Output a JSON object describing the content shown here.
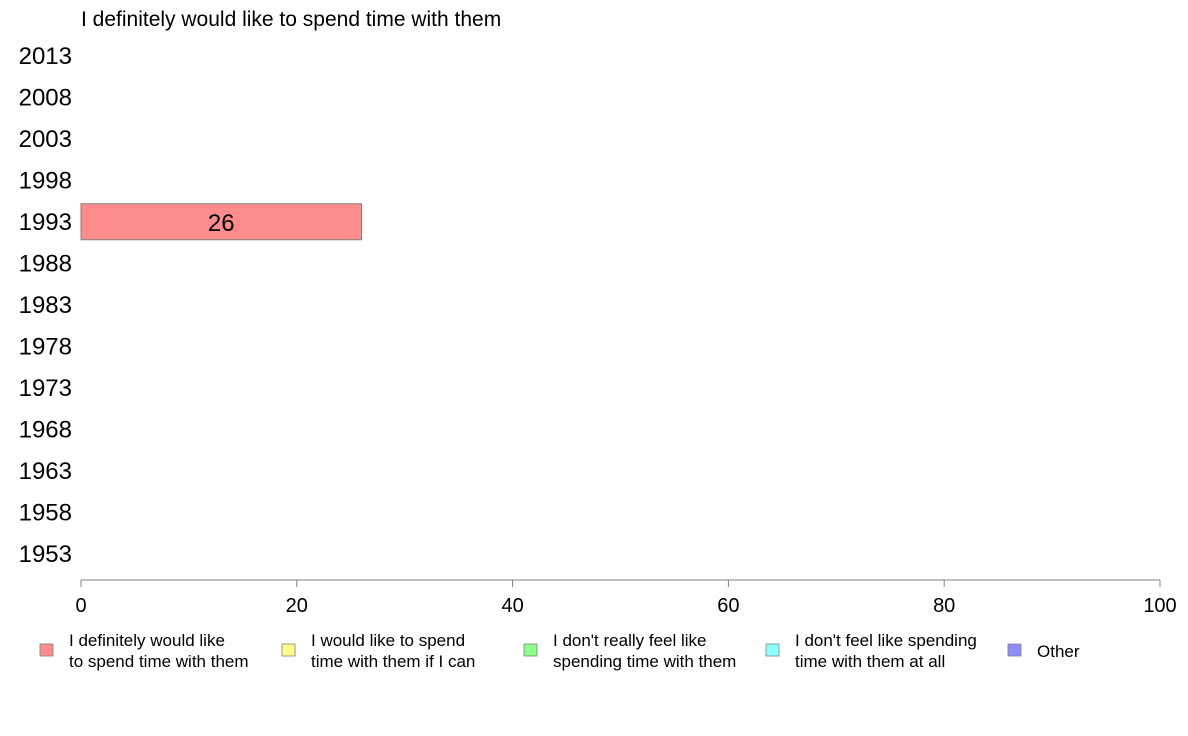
{
  "chart_data": {
    "type": "bar",
    "orientation": "horizontal",
    "title": "I definitely would like to spend time with them",
    "xlabel": "",
    "ylabel": "",
    "xlim": [
      0,
      100
    ],
    "x_ticks": [
      0,
      20,
      40,
      60,
      80,
      100
    ],
    "categories": [
      "2013",
      "2008",
      "2003",
      "1998",
      "1993",
      "1988",
      "1983",
      "1978",
      "1973",
      "1968",
      "1963",
      "1958",
      "1953"
    ],
    "series": [
      {
        "name": "I definitely would like to spend time with them",
        "color": "#ff8c8c",
        "values": [
          null,
          null,
          null,
          null,
          26,
          null,
          null,
          null,
          null,
          null,
          null,
          null,
          null
        ]
      }
    ],
    "legend_position": "bottom",
    "legend": [
      {
        "lines": [
          "I definitely would like",
          "to spend time with them"
        ],
        "color": "#ff8c8c"
      },
      {
        "lines": [
          "I would like to spend",
          "time with them if I can"
        ],
        "color": "#ffff8c"
      },
      {
        "lines": [
          "I don't really feel like",
          "spending time with them"
        ],
        "color": "#8cff8c"
      },
      {
        "lines": [
          "I don't feel like spending",
          "time with them at all"
        ],
        "color": "#8cffff"
      },
      {
        "lines": [
          "Other"
        ],
        "color": "#8c8cff"
      }
    ]
  }
}
